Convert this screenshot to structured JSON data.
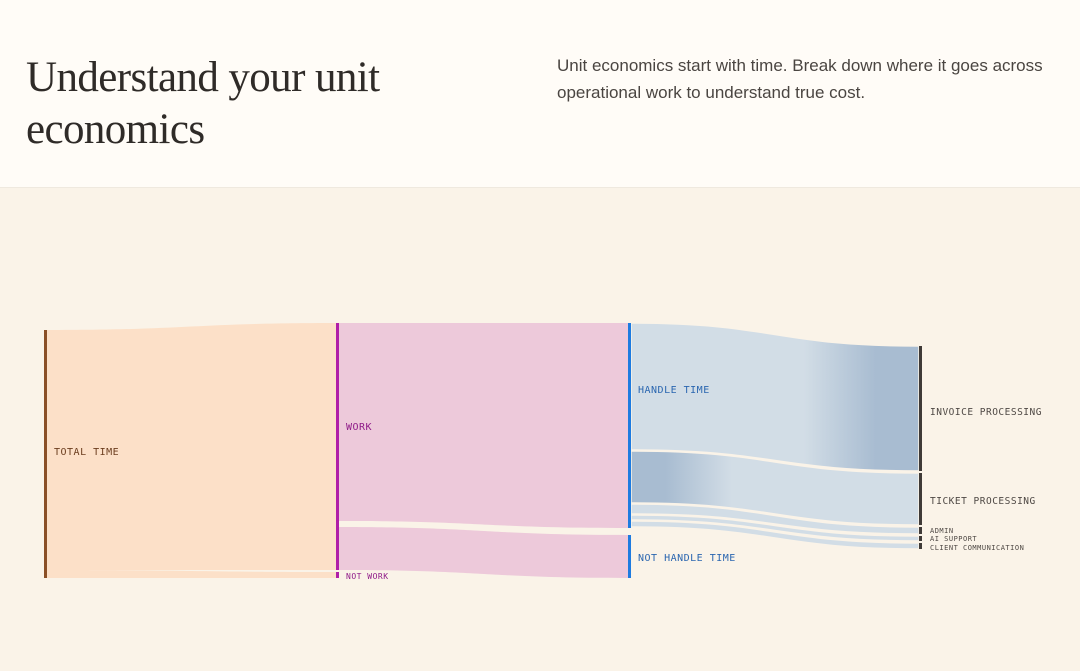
{
  "header": {
    "title": "Understand your unit economics",
    "description": "Unit economics start with time. Break down where it goes across operational work to understand true cost."
  },
  "sankey": {
    "nodes": [
      {
        "id": "total",
        "label": "TOTAL TIME",
        "color": "#8a4f26",
        "text_color": "#6b3d1e"
      },
      {
        "id": "work",
        "label": "WORK",
        "color": "#b01ea8",
        "text_color": "#8f1a88"
      },
      {
        "id": "notwork",
        "label": "NOT WORK",
        "color": "#b01ea8",
        "text_color": "#8f1a88"
      },
      {
        "id": "handle",
        "label": "HANDLE TIME",
        "color": "#1e7be0",
        "text_color": "#2a66b0"
      },
      {
        "id": "nothandle",
        "label": "NOT HANDLE TIME",
        "color": "#1e7be0",
        "text_color": "#2a66b0"
      },
      {
        "id": "invoice",
        "label": "INVOICE PROCESSING",
        "color": "#3f3a37",
        "text_color": "#4e4844"
      },
      {
        "id": "ticket",
        "label": "TICKET PROCESSING",
        "color": "#3f3a37",
        "text_color": "#4e4844"
      },
      {
        "id": "admin",
        "label": "ADMIN",
        "color": "#3f3a37",
        "text_color": "#4e4844"
      },
      {
        "id": "ai",
        "label": "AI SUPPORT",
        "color": "#3f3a37",
        "text_color": "#4e4844"
      },
      {
        "id": "client",
        "label": "CLIENT COMMUNICATION",
        "color": "#3f3a37",
        "text_color": "#4e4844"
      }
    ],
    "links": [
      {
        "source": "total",
        "target": "work",
        "value": 98,
        "color": "#fce0c8"
      },
      {
        "source": "total",
        "target": "notwork",
        "value": 2,
        "color": "#fce0c8"
      },
      {
        "source": "work",
        "target": "handle",
        "value": 80,
        "color": "#edc9da"
      },
      {
        "source": "work",
        "target": "nothandle",
        "value": 18,
        "color": "#edc9da"
      },
      {
        "source": "handle",
        "target": "invoice",
        "value": 51,
        "color": "#d2dde6"
      },
      {
        "source": "handle",
        "target": "ticket",
        "value": 21.5,
        "color": "#d2dde6"
      },
      {
        "source": "handle",
        "target": "admin",
        "value": 3,
        "color": "#d2dde6"
      },
      {
        "source": "handle",
        "target": "ai",
        "value": 2,
        "color": "#d2dde6"
      },
      {
        "source": "handle",
        "target": "client",
        "value": 2.5,
        "color": "#d2dde6"
      }
    ],
    "highlight_color": "#a8bcd1"
  }
}
